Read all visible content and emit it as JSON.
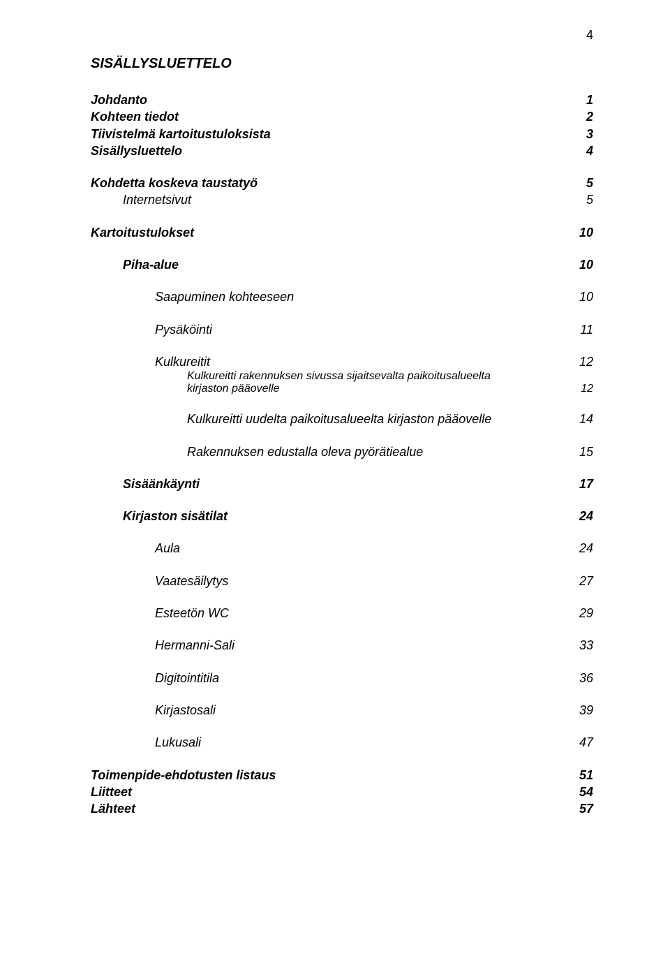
{
  "page_number": "4",
  "title": "SISÄLLYSLUETTELO",
  "text_color": "#000000",
  "background_color": "#ffffff",
  "font_family": "Arial",
  "base_fontsize": 18,
  "entries": {
    "johdanto": {
      "label": "Johdanto",
      "page": "1"
    },
    "kohteen_tiedot": {
      "label": "Kohteen tiedot",
      "page": "2"
    },
    "tiivistelma": {
      "label": "Tiivistelmä kartoitustuloksista",
      "page": "3"
    },
    "sisallysluettelo": {
      "label": "Sisällysluettelo",
      "page": "4"
    },
    "kohdetta_koskeva": {
      "label": "Kohdetta koskeva taustatyö",
      "page": "5"
    },
    "internetsivut": {
      "label": "Internetsivut",
      "page": "5"
    },
    "kartoitustulokset": {
      "label": "Kartoitustulokset",
      "page": "10"
    },
    "piha_alue": {
      "label": "Piha-alue",
      "page": "10"
    },
    "saapuminen": {
      "label": "Saapuminen kohteeseen",
      "page": "10"
    },
    "pysakointi": {
      "label": "Pysäköinti",
      "page": "11"
    },
    "kulkureitit": {
      "label": "Kulkureitit",
      "page": "12"
    },
    "kulkureitti_rakennuksen": {
      "label_l1": "Kulkureitti rakennuksen sivussa sijaitsevalta paikoitusalueelta",
      "label_l2": "kirjaston pääovelle",
      "page": "12"
    },
    "kulkureitti_uudelta": {
      "label": "Kulkureitti uudelta paikoitusalueelta kirjaston pääovelle",
      "page": "14"
    },
    "rakennuksen_edustalla": {
      "label": "Rakennuksen edustalla oleva pyörätiealue",
      "page": "15"
    },
    "sisaankaynti": {
      "label": "Sisäänkäynti",
      "page": "17"
    },
    "kirjaston_sisatilat": {
      "label": "Kirjaston sisätilat",
      "page": "24"
    },
    "aula": {
      "label": "Aula",
      "page": "24"
    },
    "vaatesailytys": {
      "label": "Vaatesäilytys",
      "page": "27"
    },
    "esteeton_wc": {
      "label": "Esteetön WC",
      "page": "29"
    },
    "hermanni_sali": {
      "label": "Hermanni-Sali",
      "page": "33"
    },
    "digitointitila": {
      "label": "Digitointitila",
      "page": "36"
    },
    "kirjastosali": {
      "label": "Kirjastosali",
      "page": "39"
    },
    "lukusali": {
      "label": "Lukusali",
      "page": "47"
    },
    "toimenpide": {
      "label": "Toimenpide-ehdotusten listaus",
      "page": "51"
    },
    "liitteet": {
      "label": "Liitteet",
      "page": "54"
    },
    "lahteet": {
      "label": "Lähteet",
      "page": "57"
    }
  }
}
